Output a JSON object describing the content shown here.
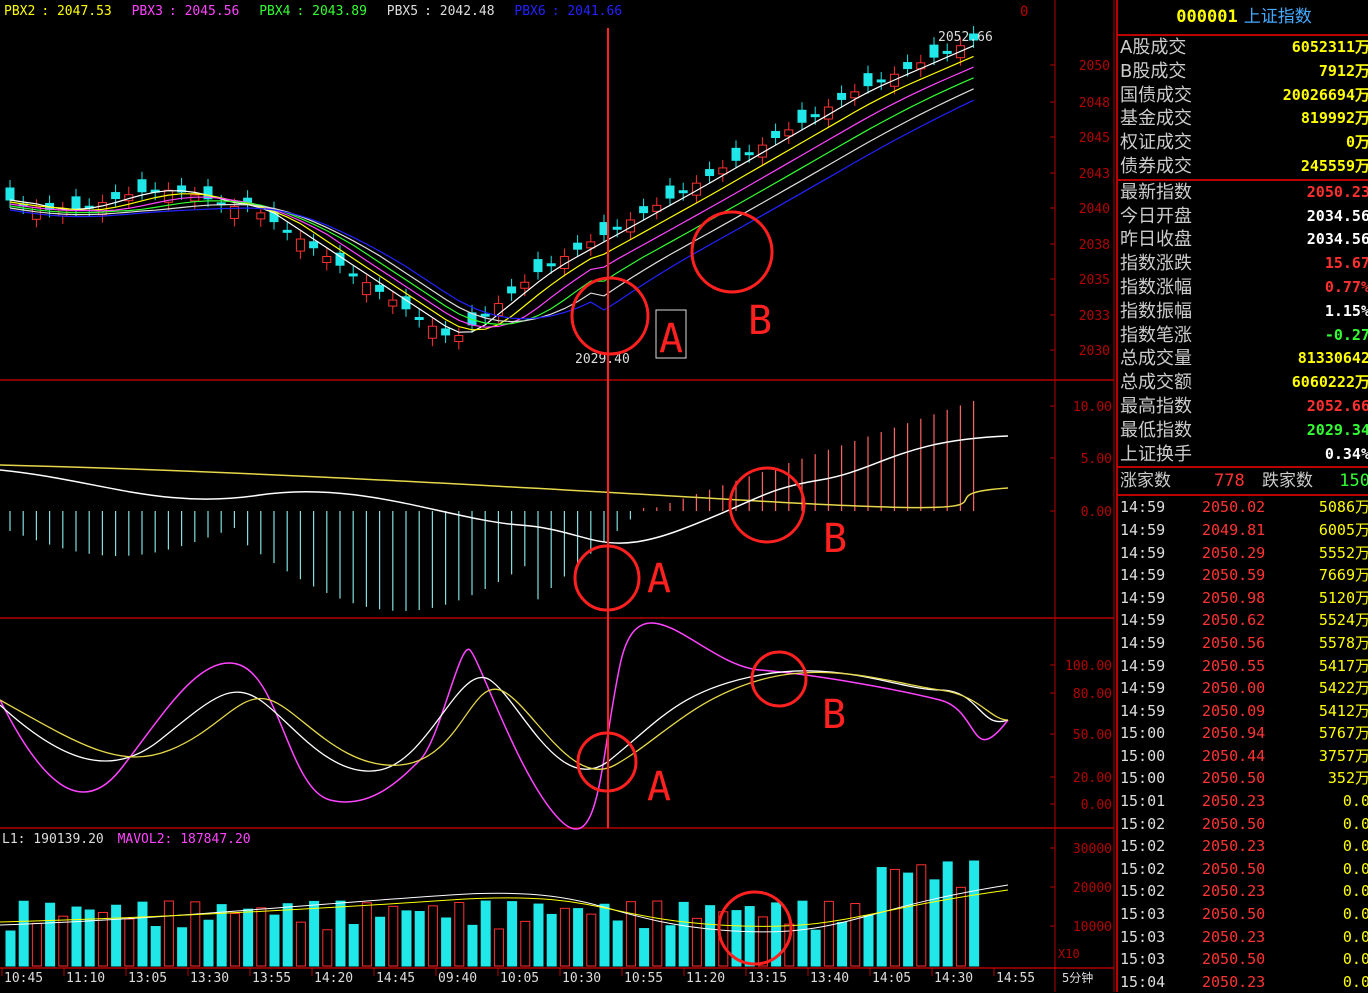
{
  "colors": {
    "up": "#ff3030",
    "down": "#20e8e8",
    "grid": "#b40000",
    "text": "#dddddd",
    "yellow": "#ffff00"
  },
  "header": {
    "items": [
      {
        "label": "PBX2",
        "value": "2047.53",
        "color": "#ffff00"
      },
      {
        "label": "PBX3",
        "value": "2045.56",
        "color": "#ff44ff"
      },
      {
        "label": "PBX4",
        "value": "2043.89",
        "color": "#33ff33"
      },
      {
        "label": "PBX5",
        "value": "2042.48",
        "color": "#dddddd"
      },
      {
        "label": "PBX6",
        "value": "2041.66",
        "color": "#2222ff"
      }
    ],
    "corner_label": "0"
  },
  "main_chart": {
    "y_ticks": [
      "2050",
      "2048",
      "2045",
      "2043",
      "2040",
      "2038",
      "2035",
      "2033",
      "2030"
    ],
    "high_label": "2052.66",
    "low_label": "2029.40",
    "annotations": [
      "A",
      "B"
    ]
  },
  "macd_chart": {
    "y_ticks": [
      "10.00",
      "5.00",
      "0.00"
    ],
    "annotations": [
      "A",
      "B"
    ]
  },
  "kdj_chart": {
    "y_ticks": [
      "100.00",
      "80.00",
      "50.00",
      "20.00",
      "0.00"
    ],
    "annotations": [
      "A",
      "B"
    ]
  },
  "volume_chart": {
    "header_items": [
      {
        "text": "L1: 190139.20",
        "color": "#dddddd"
      },
      {
        "text": "MAVOL2: 187847.20",
        "color": "#ff44ff"
      }
    ],
    "y_ticks": [
      "30000",
      "20000",
      "10000"
    ],
    "unit": "X10"
  },
  "x_axis": {
    "labels": [
      "10:45",
      "11:10",
      "13:05",
      "13:30",
      "13:55",
      "14:20",
      "14:45",
      "09:40",
      "10:05",
      "10:30",
      "10:55",
      "11:20",
      "13:15",
      "13:40",
      "14:05",
      "14:30",
      "14:55"
    ],
    "period": "5分钟"
  },
  "side_panel": {
    "code": "000001",
    "name": "上证指数",
    "rows": [
      {
        "label": "A股成交",
        "value": "6052311万",
        "color": "#ffff00"
      },
      {
        "label": "B股成交",
        "value": "7912万",
        "color": "#ffff00"
      },
      {
        "label": "国债成交",
        "value": "20026694万",
        "color": "#ffff00"
      },
      {
        "label": "基金成交",
        "value": "819992万",
        "color": "#ffff00"
      },
      {
        "label": "权证成交",
        "value": "0万",
        "color": "#ffff00"
      },
      {
        "label": "债券成交",
        "value": "245559万",
        "color": "#ffff00"
      }
    ],
    "rows2": [
      {
        "label": "最新指数",
        "value": "2050.23",
        "color": "#ff3030"
      },
      {
        "label": "今日开盘",
        "value": "2034.56",
        "color": "#ffffff"
      },
      {
        "label": "昨日收盘",
        "value": "2034.56",
        "color": "#ffffff"
      },
      {
        "label": "指数涨跌",
        "value": "15.67",
        "color": "#ff3030"
      },
      {
        "label": "指数涨幅",
        "value": "0.77%",
        "color": "#ff3030"
      },
      {
        "label": "指数振幅",
        "value": "1.15%",
        "color": "#ffffff"
      },
      {
        "label": "指数笔涨",
        "value": "-0.27",
        "color": "#33ff33"
      },
      {
        "label": "总成交量",
        "value": "81330642",
        "color": "#ffff00"
      },
      {
        "label": "总成交额",
        "value": "6060222万",
        "color": "#ffff00"
      },
      {
        "label": "最高指数",
        "value": "2052.66",
        "color": "#ff3030"
      },
      {
        "label": "最低指数",
        "value": "2029.34",
        "color": "#33ff33"
      },
      {
        "label": "上证换手",
        "value": "0.34%",
        "color": "#ffffff"
      }
    ],
    "advance_label": "涨家数",
    "advance_value": "778",
    "decline_label": "跌家数",
    "decline_value": "150",
    "ticks": [
      {
        "time": "14:59",
        "price": "2050.02",
        "vol": "5086万"
      },
      {
        "time": "14:59",
        "price": "2049.81",
        "vol": "6005万"
      },
      {
        "time": "14:59",
        "price": "2050.29",
        "vol": "5552万"
      },
      {
        "time": "14:59",
        "price": "2050.59",
        "vol": "7669万"
      },
      {
        "time": "14:59",
        "price": "2050.98",
        "vol": "5120万"
      },
      {
        "time": "14:59",
        "price": "2050.62",
        "vol": "5524万"
      },
      {
        "time": "14:59",
        "price": "2050.56",
        "vol": "5578万"
      },
      {
        "time": "14:59",
        "price": "2050.55",
        "vol": "5417万"
      },
      {
        "time": "14:59",
        "price": "2050.00",
        "vol": "5422万"
      },
      {
        "time": "14:59",
        "price": "2050.09",
        "vol": "5412万"
      },
      {
        "time": "15:00",
        "price": "2050.94",
        "vol": "5767万"
      },
      {
        "time": "15:00",
        "price": "2050.44",
        "vol": "3757万"
      },
      {
        "time": "15:00",
        "price": "2050.50",
        "vol": "352万"
      },
      {
        "time": "15:01",
        "price": "2050.23",
        "vol": "0.0"
      },
      {
        "time": "15:02",
        "price": "2050.50",
        "vol": "0.0"
      },
      {
        "time": "15:02",
        "price": "2050.23",
        "vol": "0.0"
      },
      {
        "time": "15:02",
        "price": "2050.50",
        "vol": "0.0"
      },
      {
        "time": "15:02",
        "price": "2050.23",
        "vol": "0.0"
      },
      {
        "time": "15:03",
        "price": "2050.50",
        "vol": "0.0"
      },
      {
        "time": "15:03",
        "price": "2050.23",
        "vol": "0.0"
      },
      {
        "time": "15:03",
        "price": "2050.50",
        "vol": "0.0"
      },
      {
        "time": "15:04",
        "price": "2050.23",
        "vol": "0.0"
      }
    ]
  }
}
